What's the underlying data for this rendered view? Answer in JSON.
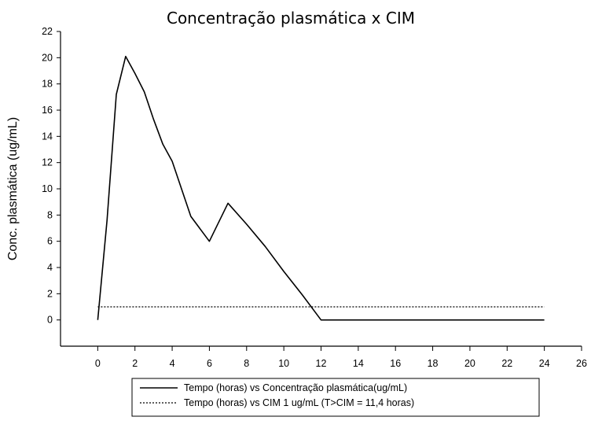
{
  "chart_data": {
    "type": "line",
    "title": "Concentração plasmática x CIM",
    "xlabel": "",
    "ylabel": "Conc. plasmática (ug/mL)",
    "xlim": [
      -2,
      26
    ],
    "ylim": [
      -2,
      22
    ],
    "xticks": [
      0,
      2,
      4,
      6,
      8,
      10,
      12,
      14,
      16,
      18,
      20,
      22,
      24,
      26
    ],
    "yticks": [
      0,
      2,
      4,
      6,
      8,
      10,
      12,
      14,
      16,
      18,
      20,
      22
    ],
    "grid": false,
    "legend_position": "bottom",
    "series": [
      {
        "name": "Tempo (horas) vs Concentração plasmática(ug/mL)",
        "style": "solid",
        "color": "#000000",
        "x": [
          0,
          0.5,
          1,
          1.5,
          2,
          2.5,
          3,
          3.5,
          4,
          5,
          6,
          7,
          8,
          9,
          10,
          11,
          12,
          24
        ],
        "y": [
          0,
          7.6,
          17.2,
          20.1,
          18.8,
          17.4,
          15.3,
          13.4,
          12.1,
          7.9,
          6.0,
          8.9,
          7.3,
          5.6,
          3.7,
          1.9,
          0,
          0
        ]
      },
      {
        "name": "Tempo (horas) vs CIM 1 ug/mL (T>CIM = 11,4 horas)",
        "style": "dotted",
        "color": "#000000",
        "x": [
          0,
          24
        ],
        "y": [
          1,
          1
        ]
      }
    ]
  }
}
